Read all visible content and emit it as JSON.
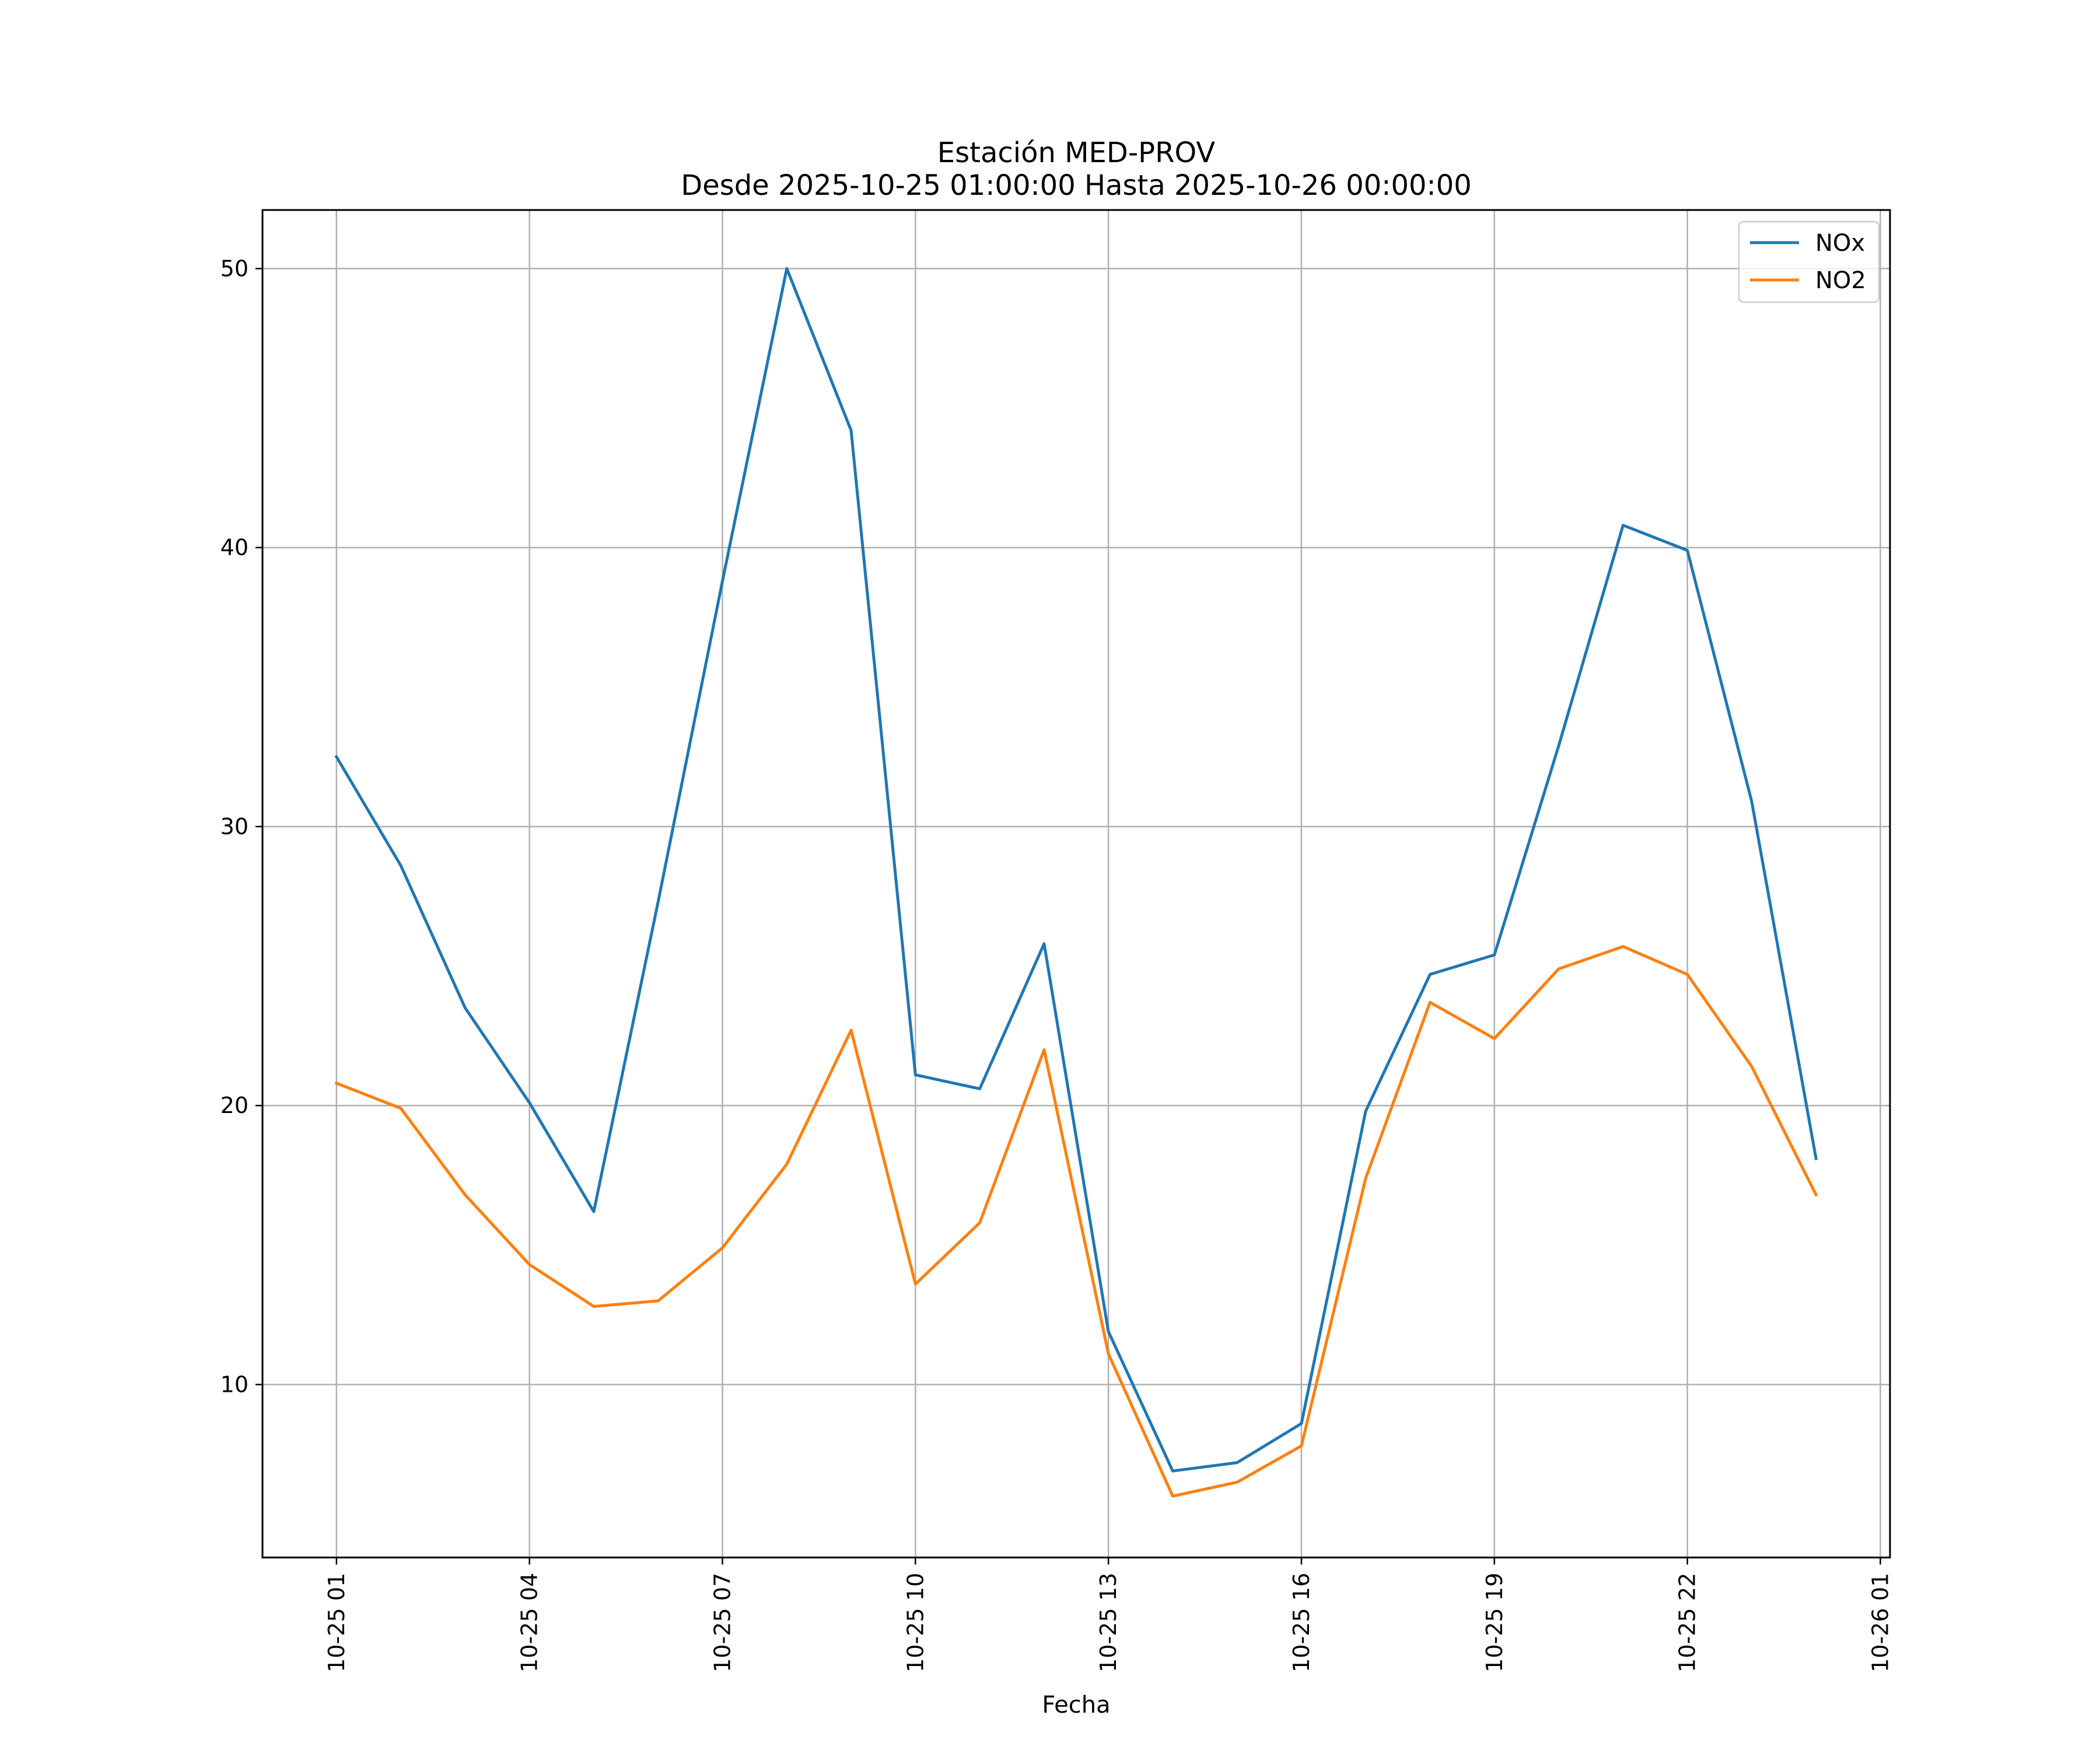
{
  "chart_data": {
    "type": "line",
    "title": "Estación MED-PROV",
    "subtitle": "Desde 2025-10-25 01:00:00 Hasta 2025-10-26 00:00:00",
    "xlabel": "Fecha",
    "ylabel": "",
    "x": [
      "2025-10-25 01:00",
      "2025-10-25 02:00",
      "2025-10-25 03:00",
      "2025-10-25 04:00",
      "2025-10-25 05:00",
      "2025-10-25 06:00",
      "2025-10-25 07:00",
      "2025-10-25 08:00",
      "2025-10-25 09:00",
      "2025-10-25 10:00",
      "2025-10-25 11:00",
      "2025-10-25 12:00",
      "2025-10-25 13:00",
      "2025-10-25 14:00",
      "2025-10-25 15:00",
      "2025-10-25 16:00",
      "2025-10-25 17:00",
      "2025-10-25 18:00",
      "2025-10-25 19:00",
      "2025-10-25 20:00",
      "2025-10-25 21:00",
      "2025-10-25 22:00",
      "2025-10-25 23:00",
      "2025-10-26 00:00"
    ],
    "xlim_hours": [
      -1.15,
      24.15
    ],
    "x_ticks": [
      {
        "hour": 0,
        "label": "10-25 01"
      },
      {
        "hour": 3,
        "label": "10-25 04"
      },
      {
        "hour": 6,
        "label": "10-25 07"
      },
      {
        "hour": 9,
        "label": "10-25 10"
      },
      {
        "hour": 12,
        "label": "10-25 13"
      },
      {
        "hour": 15,
        "label": "10-25 16"
      },
      {
        "hour": 18,
        "label": "10-25 19"
      },
      {
        "hour": 21,
        "label": "10-25 22"
      },
      {
        "hour": 24,
        "label": "10-26 01"
      }
    ],
    "ylim": [
      3.8,
      52.1
    ],
    "y_ticks": [
      10,
      20,
      30,
      40,
      50
    ],
    "grid": true,
    "legend_position": "top-right",
    "series": [
      {
        "name": "NOx",
        "color": "#1f77b4",
        "values": [
          32.5,
          28.6,
          23.5,
          20.1,
          16.2,
          27.3,
          38.8,
          50.0,
          44.2,
          21.1,
          20.6,
          25.8,
          11.9,
          6.9,
          7.2,
          8.6,
          19.8,
          24.7,
          25.4,
          32.9,
          40.8,
          39.9,
          30.9,
          18.1
        ]
      },
      {
        "name": "NO2",
        "color": "#ff7f0e",
        "values": [
          20.8,
          19.9,
          16.8,
          14.3,
          12.8,
          13.0,
          14.9,
          17.9,
          22.7,
          13.6,
          15.8,
          22.0,
          11.1,
          6.0,
          6.5,
          7.8,
          17.4,
          23.7,
          22.4,
          24.9,
          25.7,
          24.7,
          21.4,
          16.8
        ]
      }
    ]
  }
}
